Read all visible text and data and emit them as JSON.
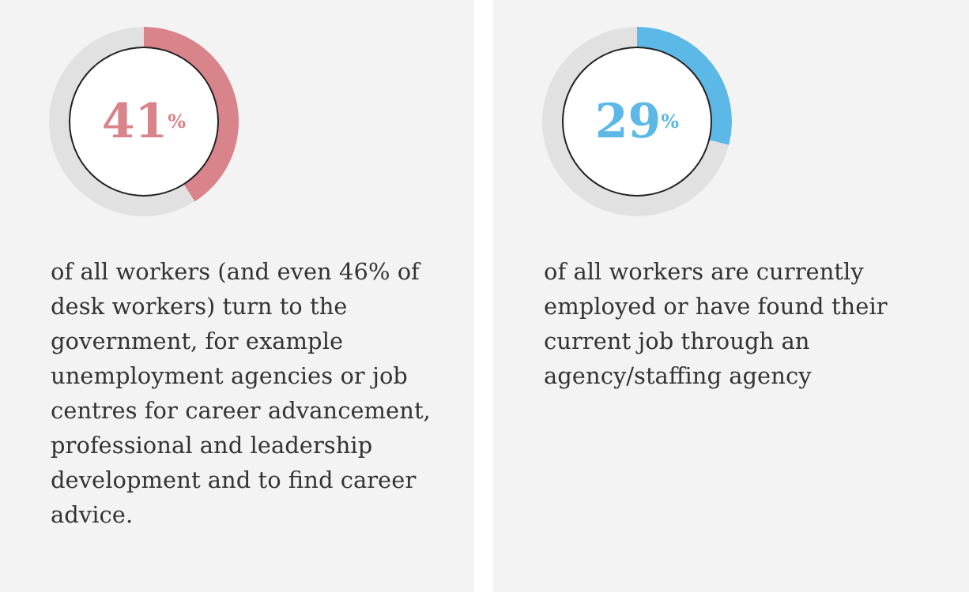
{
  "chart_data": [
    {
      "type": "donut",
      "categories": [
        null,
        null
      ],
      "values": [
        41,
        59
      ],
      "colors": [
        "#d9838a",
        "#e1e1e1"
      ],
      "value_labels": [
        "41$^{%}$",
        null
      ],
      "annotations": [
        "of all workers (and even 46% of desk workers) turn to the government, for example unemployment agencies or job centres for career advancement, professional and leadership development and to find career advice."
      ]
    },
    {
      "type": "donut",
      "categories": [
        null,
        null
      ],
      "values": [
        29,
        71
      ],
      "colors": [
        "#5cb8e6",
        "#e1e1e1"
      ],
      "value_labels": [
        "29$^{%}$",
        null
      ],
      "annotations": [
        "of all workers are currently employed or have found their current job through an agency/staffing agency"
      ]
    }
  ]
}
